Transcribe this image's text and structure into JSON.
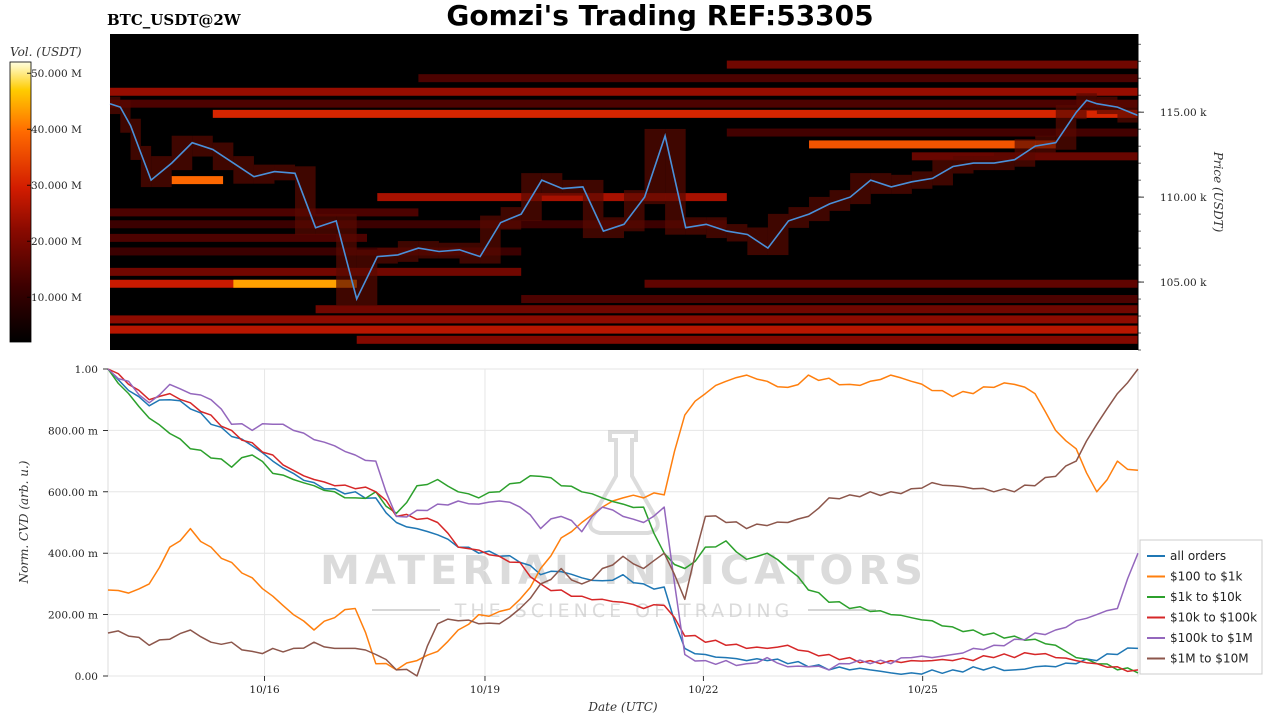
{
  "header": {
    "pair": "BTC_USDT@2W",
    "title": "Gomzi's Trading REF:53305"
  },
  "watermark": {
    "main": "MATERIAL INDICATORS",
    "sub": "THE SCIENCE OF TRADING"
  },
  "chart_data": [
    {
      "type": "heatmap",
      "panel": "orderbook-heatmap",
      "colorbar_label": "Vol. (USDT)",
      "colorbar_ticks": [
        "10.000 M",
        "20.000 M",
        "30.000 M",
        "40.000 M",
        "50.000 M"
      ],
      "colorbar_tick_values": [
        10,
        20,
        30,
        40,
        50
      ],
      "colorbar_range": [
        2,
        52
      ],
      "ylabel": "Price (USDT)",
      "y_ticks": [
        "105.00 k",
        "110.00 k",
        "115.00 k"
      ],
      "y_tick_values": [
        105,
        110,
        115
      ],
      "ylim": [
        101.0,
        119.6
      ],
      "xlim": [
        0,
        100
      ],
      "colormap": [
        "#000000",
        "#3d0000",
        "#8a0a00",
        "#d21c00",
        "#ff6a00",
        "#ffcc00",
        "#ffffe0"
      ],
      "line_color": "#4a90d9",
      "bands": [
        {
          "price": 117.8,
          "x0": 60,
          "x1": 100,
          "vol": 16
        },
        {
          "price": 117.0,
          "x0": 30,
          "x1": 100,
          "vol": 12
        },
        {
          "price": 116.2,
          "x0": 0,
          "x1": 100,
          "vol": 20
        },
        {
          "price": 115.5,
          "x0": 0,
          "x1": 100,
          "vol": 12
        },
        {
          "price": 114.9,
          "x0": 10,
          "x1": 100,
          "vol": 28
        },
        {
          "price": 113.8,
          "x0": 60,
          "x1": 100,
          "vol": 11
        },
        {
          "price": 113.1,
          "x0": 68,
          "x1": 92,
          "vol": 33
        },
        {
          "price": 112.4,
          "x0": 78,
          "x1": 100,
          "vol": 15
        },
        {
          "price": 111.0,
          "x0": 6,
          "x1": 11,
          "vol": 35
        },
        {
          "price": 110.0,
          "x0": 26,
          "x1": 60,
          "vol": 22
        },
        {
          "price": 109.1,
          "x0": 0,
          "x1": 30,
          "vol": 12
        },
        {
          "price": 108.4,
          "x0": 0,
          "x1": 60,
          "vol": 10
        },
        {
          "price": 107.6,
          "x0": 0,
          "x1": 25,
          "vol": 12
        },
        {
          "price": 106.8,
          "x0": 0,
          "x1": 40,
          "vol": 10
        },
        {
          "price": 105.6,
          "x0": 0,
          "x1": 40,
          "vol": 16
        },
        {
          "price": 104.9,
          "x0": 0,
          "x1": 24,
          "vol": 26
        },
        {
          "price": 104.9,
          "x0": 12,
          "x1": 24,
          "vol": 40
        },
        {
          "price": 104.9,
          "x0": 52,
          "x1": 100,
          "vol": 14
        },
        {
          "price": 104.0,
          "x0": 40,
          "x1": 100,
          "vol": 12
        },
        {
          "price": 103.4,
          "x0": 20,
          "x1": 100,
          "vol": 16
        },
        {
          "price": 102.8,
          "x0": 0,
          "x1": 100,
          "vol": 19
        },
        {
          "price": 102.2,
          "x0": 0,
          "x1": 100,
          "vol": 24
        },
        {
          "price": 101.6,
          "x0": 24,
          "x1": 100,
          "vol": 18
        }
      ],
      "price_line": {
        "x": [
          0,
          1,
          2,
          3,
          4,
          6,
          8,
          10,
          12,
          14,
          16,
          18,
          20,
          22,
          24,
          26,
          28,
          30,
          32,
          34,
          36,
          38,
          40,
          42,
          44,
          46,
          48,
          50,
          52,
          54,
          56,
          58,
          60,
          62,
          64,
          66,
          68,
          70,
          72,
          74,
          76,
          78,
          80,
          82,
          84,
          86,
          88,
          90,
          92,
          94,
          95,
          96,
          98,
          100
        ],
        "y": [
          115.5,
          115.3,
          114.2,
          112.6,
          111.0,
          112.0,
          113.2,
          112.8,
          112.0,
          111.2,
          111.5,
          111.4,
          108.2,
          108.6,
          104.0,
          106.5,
          106.6,
          107.0,
          106.8,
          106.9,
          106.5,
          108.5,
          109.0,
          111.0,
          110.5,
          110.6,
          108.0,
          108.4,
          110.0,
          113.6,
          108.2,
          108.4,
          108.0,
          107.8,
          107.0,
          108.6,
          109.0,
          109.6,
          110.0,
          111.0,
          110.6,
          110.9,
          111.1,
          111.8,
          112.0,
          112.0,
          112.2,
          113.0,
          113.2,
          115.0,
          115.7,
          115.5,
          115.3,
          114.8
        ]
      }
    },
    {
      "type": "line",
      "panel": "normalized-cvd",
      "xlabel": "Date (UTC)",
      "ylabel": "Norm. CVD (arb. u.)",
      "x_ticks": [
        "10/16",
        "10/19",
        "10/22",
        "10/25"
      ],
      "x_tick_values": [
        15.2,
        36.6,
        57.8,
        79.1
      ],
      "y_ticks": [
        "0.00",
        "200.00 m",
        "400.00 m",
        "600.00 m",
        "800.00 m",
        "1.00"
      ],
      "y_tick_values": [
        0,
        0.2,
        0.4,
        0.6,
        0.8,
        1.0
      ],
      "xlim": [
        0,
        100
      ],
      "ylim": [
        0,
        1.0
      ],
      "legend_position": "right",
      "grid": true,
      "x": [
        0,
        2,
        4,
        6,
        8,
        10,
        12,
        14,
        16,
        18,
        20,
        22,
        24,
        26,
        28,
        30,
        32,
        34,
        36,
        38,
        40,
        42,
        44,
        46,
        48,
        50,
        52,
        54,
        56,
        58,
        60,
        62,
        64,
        66,
        68,
        70,
        72,
        74,
        76,
        78,
        80,
        82,
        84,
        86,
        88,
        90,
        92,
        94,
        96,
        98,
        100
      ],
      "series": [
        {
          "name": "all orders",
          "color": "#1f77b4",
          "values": [
            1.0,
            0.93,
            0.88,
            0.9,
            0.87,
            0.82,
            0.78,
            0.75,
            0.7,
            0.66,
            0.63,
            0.61,
            0.6,
            0.58,
            0.5,
            0.48,
            0.46,
            0.42,
            0.4,
            0.39,
            0.37,
            0.33,
            0.34,
            0.32,
            0.31,
            0.33,
            0.3,
            0.29,
            0.09,
            0.07,
            0.06,
            0.05,
            0.05,
            0.04,
            0.03,
            0.02,
            0.02,
            0.02,
            0.01,
            0.01,
            0.02,
            0.02,
            0.03,
            0.03,
            0.02,
            0.03,
            0.03,
            0.04,
            0.05,
            0.07,
            0.09
          ]
        },
        {
          "name": "$100 to $1k",
          "color": "#ff7f0e",
          "values": [
            0.28,
            0.27,
            0.3,
            0.42,
            0.48,
            0.42,
            0.37,
            0.32,
            0.26,
            0.2,
            0.15,
            0.19,
            0.22,
            0.04,
            0.02,
            0.05,
            0.08,
            0.15,
            0.2,
            0.21,
            0.25,
            0.35,
            0.45,
            0.5,
            0.55,
            0.58,
            0.58,
            0.59,
            0.85,
            0.92,
            0.96,
            0.98,
            0.96,
            0.94,
            0.98,
            0.97,
            0.95,
            0.96,
            0.98,
            0.96,
            0.93,
            0.91,
            0.92,
            0.94,
            0.95,
            0.92,
            0.8,
            0.74,
            0.6,
            0.7,
            0.67
          ]
        },
        {
          "name": "$1k to $10k",
          "color": "#2ca02c",
          "values": [
            1.0,
            0.92,
            0.84,
            0.79,
            0.74,
            0.71,
            0.68,
            0.72,
            0.66,
            0.64,
            0.62,
            0.6,
            0.58,
            0.6,
            0.53,
            0.62,
            0.64,
            0.6,
            0.58,
            0.6,
            0.63,
            0.65,
            0.62,
            0.6,
            0.58,
            0.56,
            0.55,
            0.4,
            0.35,
            0.42,
            0.44,
            0.38,
            0.4,
            0.35,
            0.28,
            0.24,
            0.22,
            0.21,
            0.2,
            0.19,
            0.18,
            0.16,
            0.15,
            0.14,
            0.13,
            0.12,
            0.1,
            0.06,
            0.04,
            0.02,
            0.01
          ]
        },
        {
          "name": "$10k to $100k",
          "color": "#d62728",
          "values": [
            1.0,
            0.95,
            0.9,
            0.92,
            0.89,
            0.85,
            0.8,
            0.76,
            0.72,
            0.67,
            0.64,
            0.62,
            0.61,
            0.6,
            0.52,
            0.51,
            0.5,
            0.42,
            0.41,
            0.39,
            0.37,
            0.3,
            0.28,
            0.26,
            0.25,
            0.24,
            0.22,
            0.23,
            0.13,
            0.11,
            0.1,
            0.09,
            0.09,
            0.1,
            0.08,
            0.07,
            0.06,
            0.05,
            0.05,
            0.05,
            0.05,
            0.05,
            0.05,
            0.06,
            0.06,
            0.07,
            0.06,
            0.05,
            0.04,
            0.03,
            0.02
          ]
        },
        {
          "name": "$100k to $1M",
          "color": "#9467bd",
          "values": [
            1.0,
            0.96,
            0.89,
            0.95,
            0.92,
            0.9,
            0.82,
            0.8,
            0.82,
            0.8,
            0.77,
            0.75,
            0.72,
            0.7,
            0.52,
            0.54,
            0.56,
            0.57,
            0.56,
            0.57,
            0.55,
            0.48,
            0.52,
            0.47,
            0.55,
            0.52,
            0.5,
            0.55,
            0.07,
            0.05,
            0.05,
            0.04,
            0.06,
            0.03,
            0.03,
            0.02,
            0.04,
            0.04,
            0.04,
            0.06,
            0.06,
            0.07,
            0.09,
            0.1,
            0.12,
            0.14,
            0.15,
            0.18,
            0.2,
            0.22,
            0.4
          ]
        },
        {
          "name": "$1M to $10M",
          "color": "#8c564b",
          "values": [
            0.14,
            0.13,
            0.1,
            0.12,
            0.15,
            0.11,
            0.11,
            0.08,
            0.09,
            0.09,
            0.11,
            0.09,
            0.09,
            0.07,
            0.02,
            0.0,
            0.17,
            0.18,
            0.17,
            0.17,
            0.22,
            0.3,
            0.35,
            0.3,
            0.35,
            0.39,
            0.35,
            0.4,
            0.25,
            0.52,
            0.5,
            0.48,
            0.49,
            0.5,
            0.52,
            0.58,
            0.59,
            0.6,
            0.6,
            0.61,
            0.63,
            0.62,
            0.61,
            0.6,
            0.6,
            0.62,
            0.65,
            0.7,
            0.82,
            0.92,
            1.0
          ]
        }
      ]
    }
  ]
}
